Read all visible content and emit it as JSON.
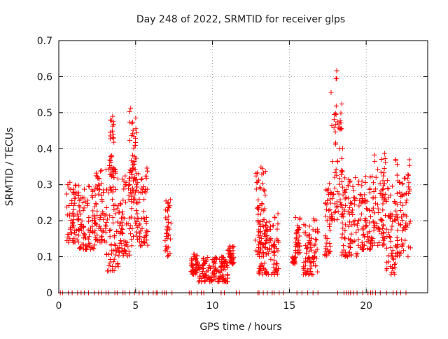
{
  "chart_data": {
    "type": "scatter",
    "title": "Day 248 of 2022, SRMTID for receiver glps",
    "xlabel": "GPS time / hours",
    "ylabel": "SRMTID / TECUs",
    "xlim": [
      0,
      24
    ],
    "ylim": [
      0,
      0.7
    ],
    "x_ticks": [
      0,
      5,
      10,
      15,
      20
    ],
    "x_tick_labels": [
      "0",
      "5",
      "10",
      "15",
      "20"
    ],
    "y_ticks": [
      0,
      0.1,
      0.2,
      0.3,
      0.4,
      0.5,
      0.6,
      0.7
    ],
    "y_tick_labels": [
      "0",
      "0.1",
      "0.2",
      "0.3",
      "0.4",
      "0.5",
      "0.6",
      "0.7"
    ],
    "grid": true,
    "marker": "+",
    "series": [
      {
        "name": "SRMTID",
        "color": "#ff0000",
        "clusters": [
          {
            "x": [
              0.5,
              1.3
            ],
            "y": [
              0.14,
              0.31
            ]
          },
          {
            "x": [
              1.3,
              2.4
            ],
            "y": [
              0.12,
              0.3
            ]
          },
          {
            "x": [
              2.4,
              3.1
            ],
            "y": [
              0.14,
              0.35
            ]
          },
          {
            "x": [
              3.1,
              3.9
            ],
            "y": [
              0.06,
              0.35
            ]
          },
          {
            "x": [
              3.3,
              3.6
            ],
            "y": [
              0.32,
              0.5
            ]
          },
          {
            "x": [
              3.9,
              4.7
            ],
            "y": [
              0.1,
              0.33
            ]
          },
          {
            "x": [
              4.6,
              5.1
            ],
            "y": [
              0.25,
              0.52
            ]
          },
          {
            "x": [
              4.7,
              5.8
            ],
            "y": [
              0.13,
              0.35
            ]
          },
          {
            "x": [
              6.9,
              7.3
            ],
            "y": [
              0.1,
              0.27
            ]
          },
          {
            "x": [
              8.6,
              9.1
            ],
            "y": [
              0.05,
              0.11
            ]
          },
          {
            "x": [
              9.1,
              11.0
            ],
            "y": [
              0.03,
              0.1
            ]
          },
          {
            "x": [
              11.0,
              11.4
            ],
            "y": [
              0.08,
              0.14
            ]
          },
          {
            "x": [
              12.8,
              13.5
            ],
            "y": [
              0.1,
              0.37
            ]
          },
          {
            "x": [
              13.0,
              14.0
            ],
            "y": [
              0.05,
              0.2
            ]
          },
          {
            "x": [
              14.0,
              14.3
            ],
            "y": [
              0.05,
              0.22
            ]
          },
          {
            "x": [
              15.2,
              15.4
            ],
            "y": [
              0.08,
              0.1
            ]
          },
          {
            "x": [
              15.4,
              15.7
            ],
            "y": [
              0.11,
              0.22
            ]
          },
          {
            "x": [
              15.9,
              16.9
            ],
            "y": [
              0.05,
              0.22
            ]
          },
          {
            "x": [
              17.3,
              17.7
            ],
            "y": [
              0.1,
              0.3
            ]
          },
          {
            "x": [
              17.6,
              18.5
            ],
            "y": [
              0.2,
              0.62
            ]
          },
          {
            "x": [
              18.4,
              19.5
            ],
            "y": [
              0.1,
              0.32
            ]
          },
          {
            "x": [
              19.5,
              20.5
            ],
            "y": [
              0.12,
              0.33
            ]
          },
          {
            "x": [
              20.5,
              21.3
            ],
            "y": [
              0.13,
              0.39
            ]
          },
          {
            "x": [
              21.3,
              21.9
            ],
            "y": [
              0.05,
              0.32
            ]
          },
          {
            "x": [
              21.9,
              22.9
            ],
            "y": [
              0.1,
              0.37
            ]
          }
        ],
        "zero_band": {
          "x": [
            0.1,
            22.7
          ],
          "y": 0
        }
      }
    ]
  }
}
